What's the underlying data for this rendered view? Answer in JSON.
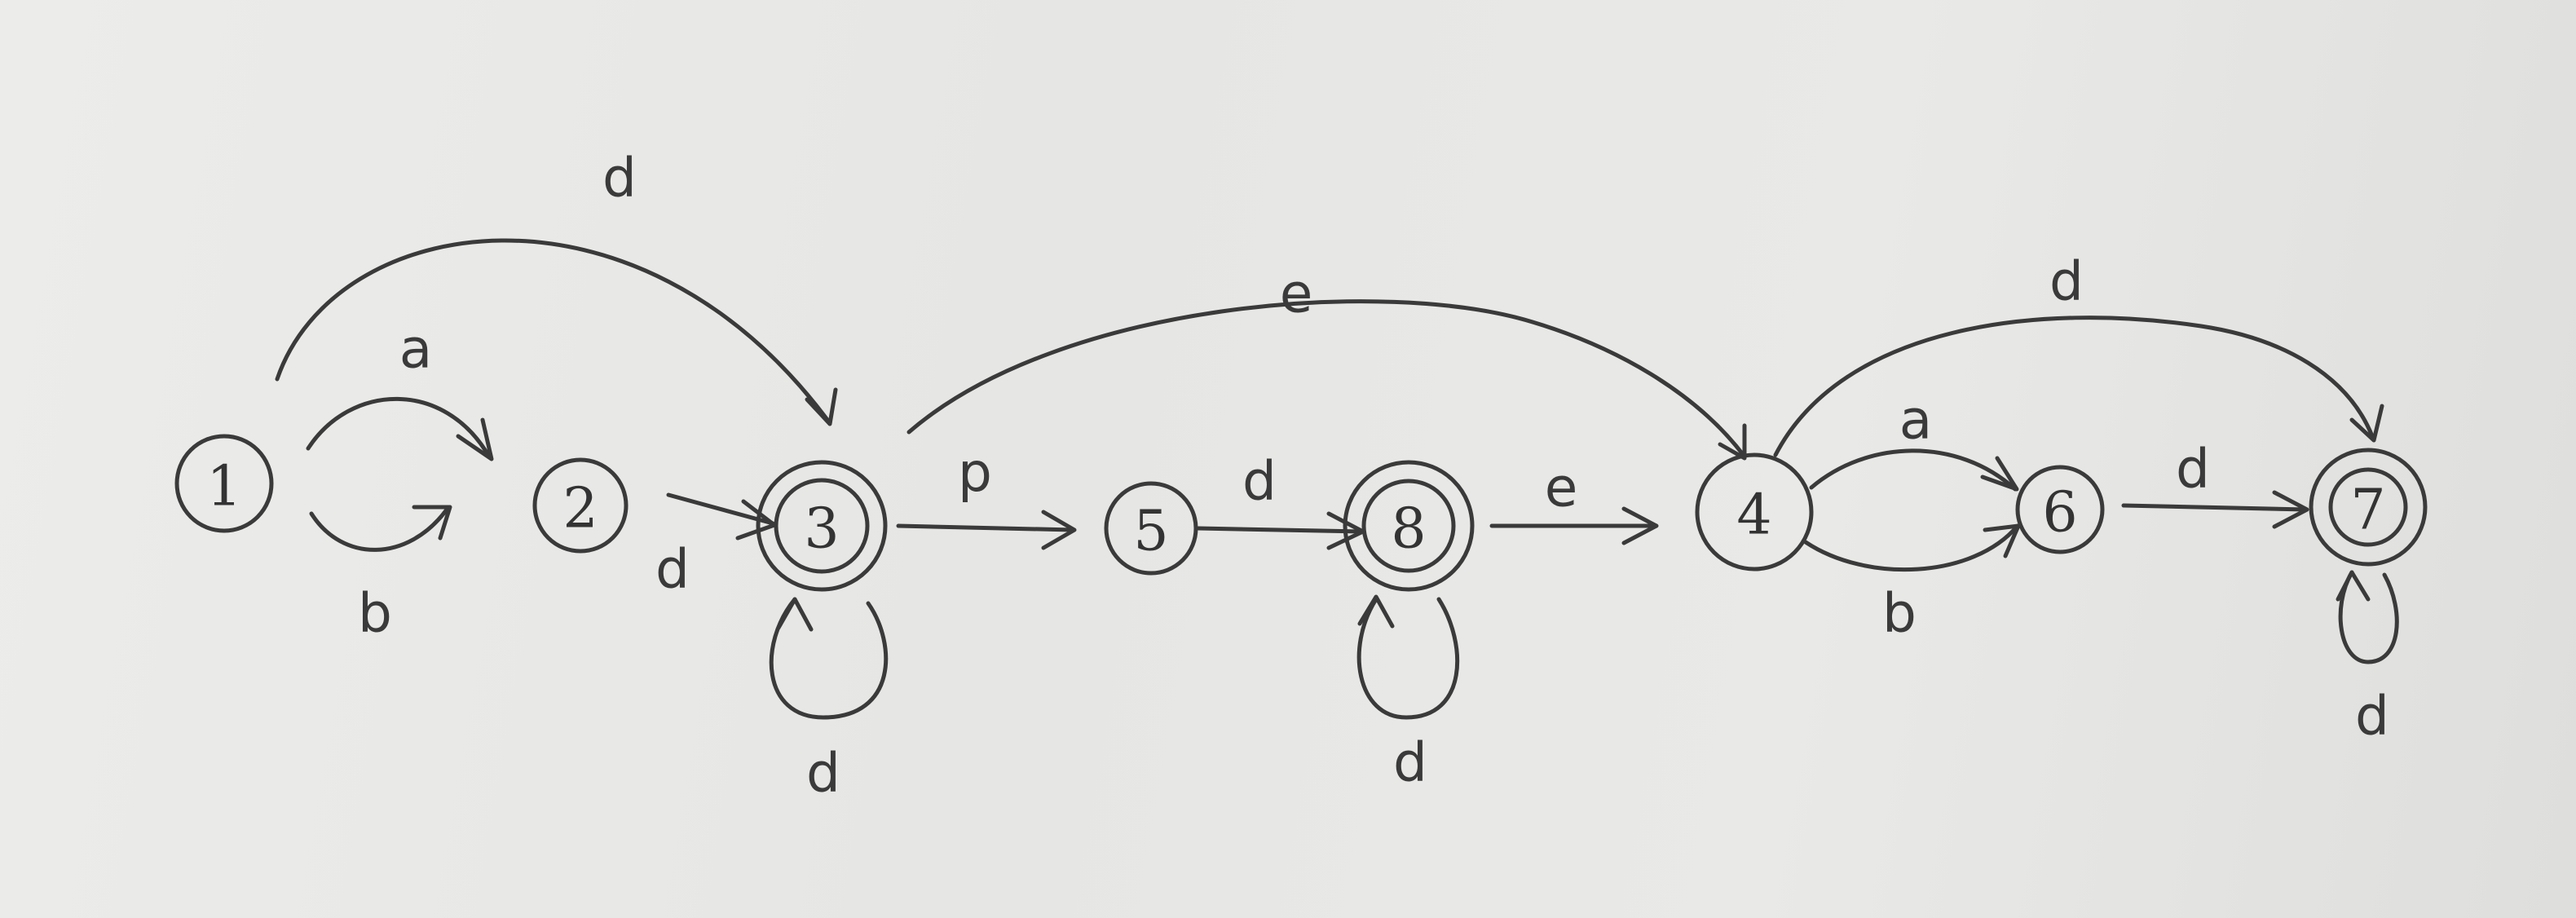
{
  "states": [
    {
      "id": "s1",
      "label": "1",
      "accepting": false
    },
    {
      "id": "s2",
      "label": "2",
      "accepting": false
    },
    {
      "id": "s3",
      "label": "3",
      "accepting": true
    },
    {
      "id": "s5",
      "label": "5",
      "accepting": false
    },
    {
      "id": "s8",
      "label": "8",
      "accepting": true
    },
    {
      "id": "s4",
      "label": "4",
      "accepting": false
    },
    {
      "id": "s6",
      "label": "6",
      "accepting": false
    },
    {
      "id": "s7",
      "label": "7",
      "accepting": true
    }
  ],
  "transitions": [
    {
      "from": "1",
      "to": "2",
      "label": "a"
    },
    {
      "from": "1",
      "to": "2",
      "label": "b"
    },
    {
      "from": "1",
      "to": "3",
      "label": "d"
    },
    {
      "from": "2",
      "to": "3",
      "label": "d"
    },
    {
      "from": "3",
      "to": "3",
      "label": "d"
    },
    {
      "from": "3",
      "to": "5",
      "label": "p"
    },
    {
      "from": "3",
      "to": "4",
      "label": "e"
    },
    {
      "from": "5",
      "to": "8",
      "label": "d"
    },
    {
      "from": "8",
      "to": "8",
      "label": "d"
    },
    {
      "from": "8",
      "to": "4",
      "label": "e"
    },
    {
      "from": "4",
      "to": "6",
      "label": "a"
    },
    {
      "from": "4",
      "to": "6",
      "label": "b"
    },
    {
      "from": "4",
      "to": "7",
      "label": "d"
    },
    {
      "from": "6",
      "to": "7",
      "label": "d"
    },
    {
      "from": "7",
      "to": "7",
      "label": "d"
    }
  ]
}
